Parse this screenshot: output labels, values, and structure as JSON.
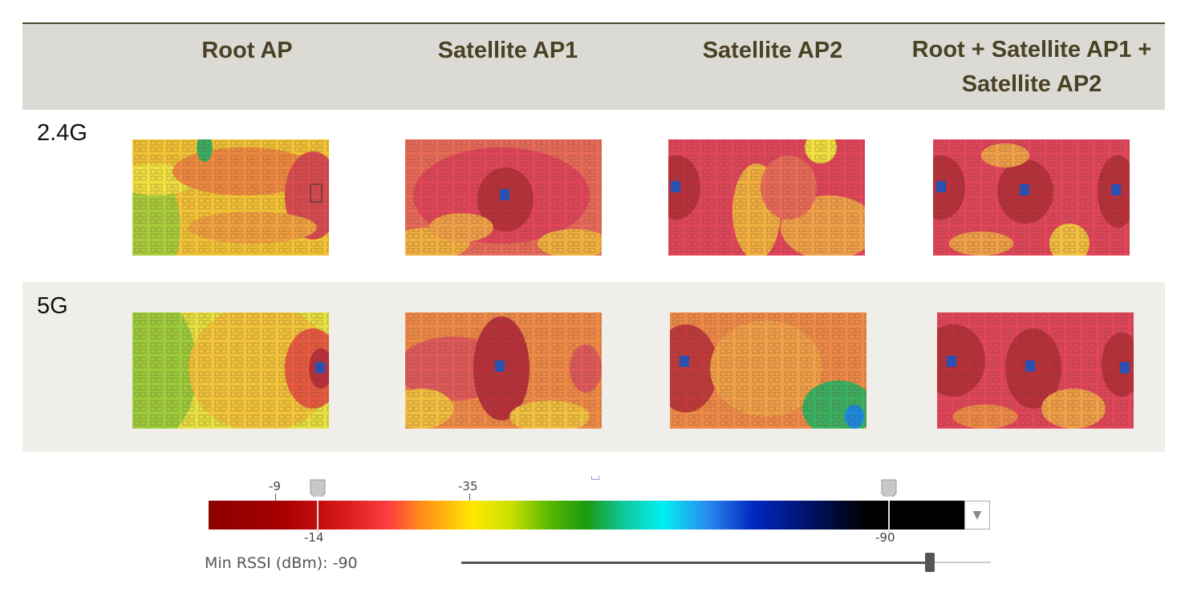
{
  "header": {
    "columns": [
      "Root AP",
      "Satellite AP1",
      "Satellite AP2",
      "Root + Satellite AP1 + Satellite AP2"
    ]
  },
  "rows": [
    {
      "band": "2.4G"
    },
    {
      "band": "5G"
    }
  ],
  "legend": {
    "tick_above_1": "-9",
    "tick_above_2": "-35",
    "marker_low": "-14",
    "marker_high": "-90",
    "dropdown_icon": "chevron-down-icon",
    "min_rssi_label": "Min RSSI (dBm): -90",
    "slider_value": 0.95
  }
}
